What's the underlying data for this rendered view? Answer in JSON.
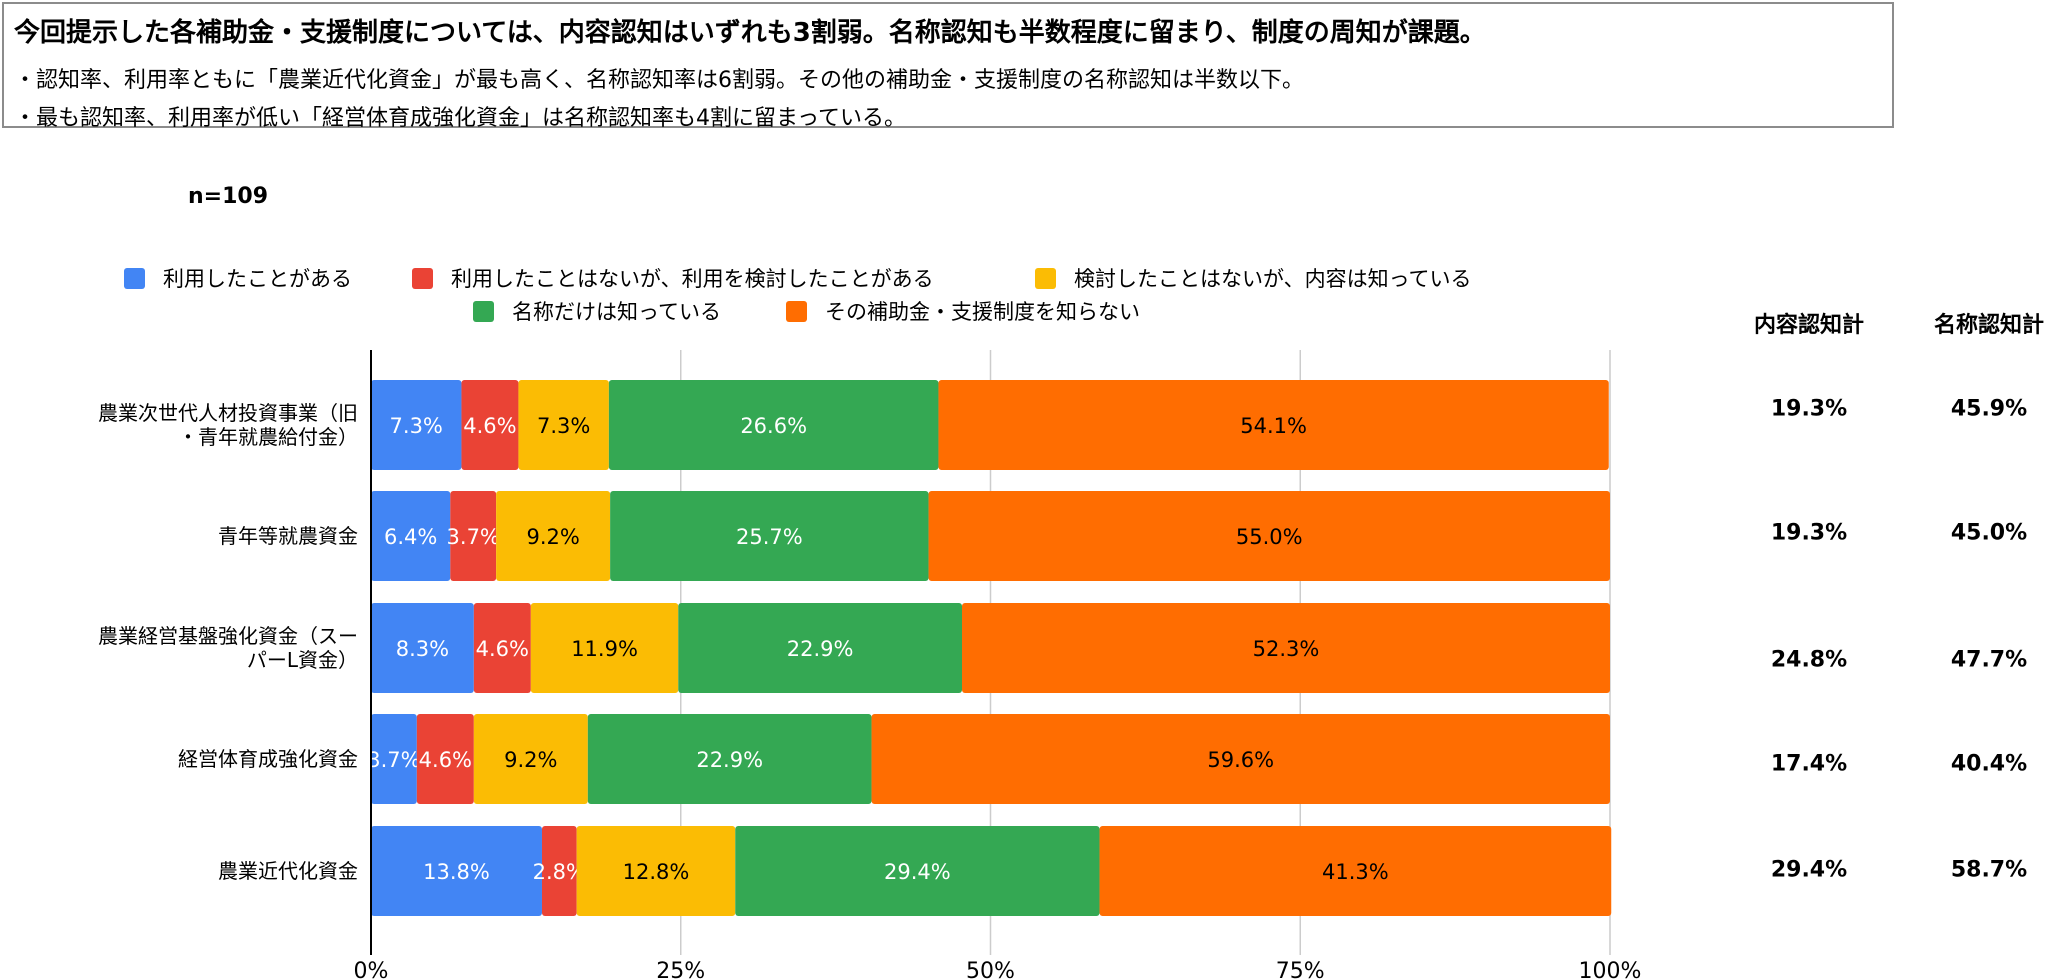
{
  "summary": {
    "headline": "今回提示した各補助金・支援制度については、内容認知はいずれも3割弱。名称認知も半数程度に留まり、制度の周知が課題。",
    "bullets": [
      "・認知率、利用率ともに「農業近代化資金」が最も高く、名称認知率は6割弱。その他の補助金・支援制度の名称認知は半数以下。",
      "・最も認知率、利用率が低い「経営体育成強化資金」は名称認知率も4割に留まっている。"
    ]
  },
  "sample_size": "n=109",
  "columns": {
    "content_total": "内容認知計",
    "name_total": "名称認知計"
  },
  "chart_data": {
    "type": "bar",
    "orientation": "horizontal",
    "stacked": true,
    "categories": [
      "農業次世代人材投資事業（旧・青年就農給付金）",
      "青年等就農資金",
      "農業経営基盤強化資金（スーパーL資金）",
      "経営体育成強化資金",
      "農業近代化資金"
    ],
    "category_lines": [
      [
        "農業次世代人材投資事業（旧",
        "・青年就農給付金）"
      ],
      [
        "青年等就農資金"
      ],
      [
        "農業経営基盤強化資金（スー",
        "パーL資金）"
      ],
      [
        "経営体育成強化資金"
      ],
      [
        "農業近代化資金"
      ]
    ],
    "series": [
      {
        "name": "利用したことがある",
        "color": "#4285F4",
        "label_color": "#ffffff",
        "values": [
          7.3,
          6.4,
          8.3,
          3.7,
          13.8
        ],
        "labels": [
          "7.3%",
          "6.4%",
          "8.3%",
          "3.7%",
          "13.8%"
        ]
      },
      {
        "name": "利用したことはないが、利用を検討したことがある",
        "color": "#EA4335",
        "label_color": "#ffffff",
        "values": [
          4.6,
          3.7,
          4.6,
          4.6,
          2.8
        ],
        "labels": [
          "4.6%",
          "3.7%",
          "4.6%",
          "4.6%",
          "2.8%"
        ]
      },
      {
        "name": "検討したことはないが、内容は知っている",
        "color": "#FBBC04",
        "label_color": "#000000",
        "values": [
          7.3,
          9.2,
          11.9,
          9.2,
          12.8
        ],
        "labels": [
          "7.3%",
          "9.2%",
          "11.9%",
          "9.2%",
          "12.8%"
        ]
      },
      {
        "name": "名称だけは知っている",
        "color": "#34A853",
        "label_color": "#ffffff",
        "values": [
          26.6,
          25.7,
          22.9,
          22.9,
          29.4
        ],
        "labels": [
          "26.6%",
          "25.7%",
          "22.9%",
          "22.9%",
          "29.4%"
        ]
      },
      {
        "name": "その補助金・支援制度を知らない",
        "color": "#FF6D01",
        "label_color": "#000000",
        "values": [
          54.1,
          55.0,
          52.3,
          59.6,
          41.3
        ],
        "labels": [
          "54.1%",
          "55.0%",
          "52.3%",
          "59.6%",
          "41.3%"
        ]
      }
    ],
    "xlim": [
      0,
      100
    ],
    "x_ticks": [
      "0%",
      "25%",
      "50%",
      "75%",
      "100%"
    ],
    "grid": true,
    "legend_position": "top",
    "content_totals": [
      "19.3%",
      "19.3%",
      "24.8%",
      "17.4%",
      "29.4%"
    ],
    "name_totals": [
      "45.9%",
      "45.0%",
      "47.7%",
      "40.4%",
      "58.7%"
    ]
  }
}
